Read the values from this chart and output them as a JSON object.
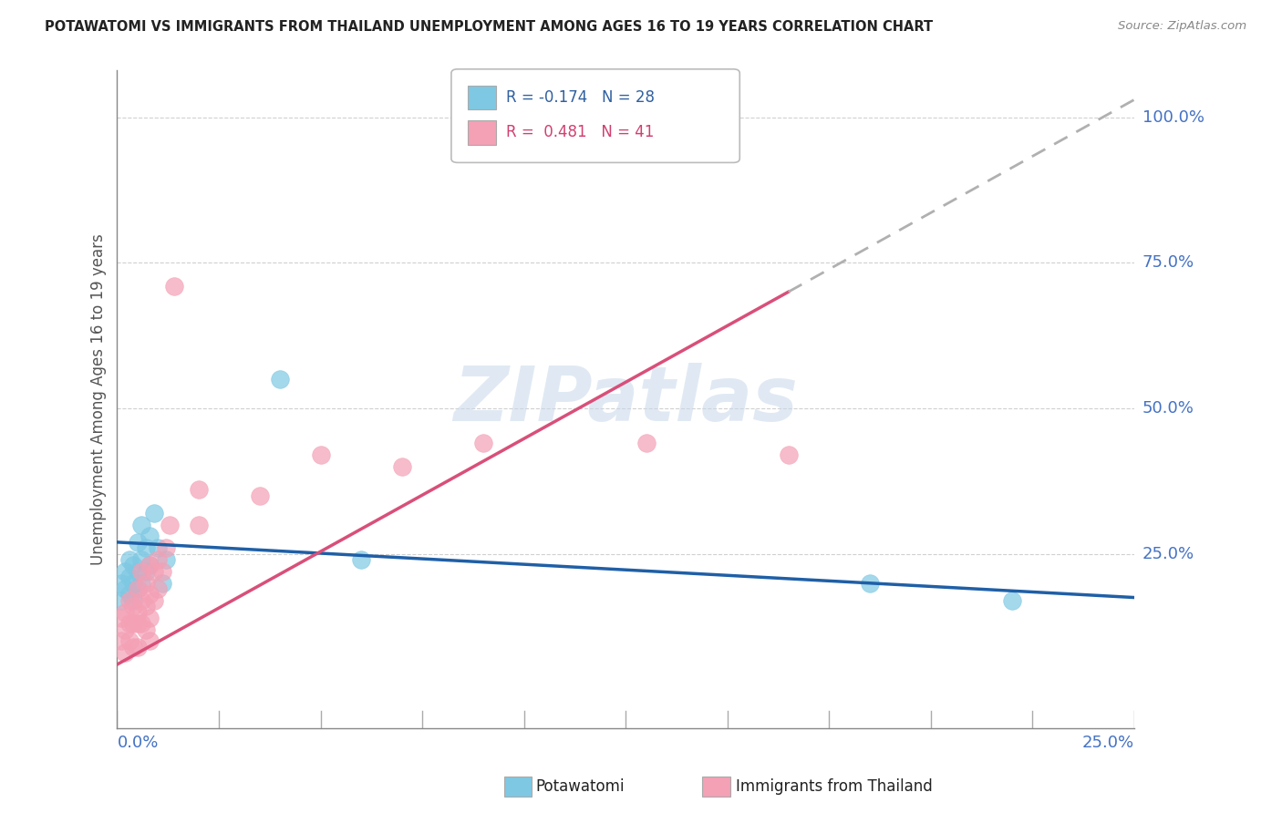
{
  "title": "POTAWATOMI VS IMMIGRANTS FROM THAILAND UNEMPLOYMENT AMONG AGES 16 TO 19 YEARS CORRELATION CHART",
  "source": "Source: ZipAtlas.com",
  "ylabel": "Unemployment Among Ages 16 to 19 years",
  "xlim": [
    0,
    0.25
  ],
  "ylim": [
    -0.05,
    1.08
  ],
  "legend1_r": "-0.174",
  "legend1_n": "28",
  "legend2_r": "0.481",
  "legend2_n": "41",
  "blue_scatter": "#7ec8e3",
  "pink_scatter": "#f4a0b5",
  "blue_line": "#1f5fa6",
  "pink_line": "#d94f7a",
  "gray_dash": "#b0b0b0",
  "watermark_color": "#c8d8ea",
  "potawatomi_x": [
    0.001,
    0.001,
    0.002,
    0.002,
    0.003,
    0.003,
    0.003,
    0.004,
    0.004,
    0.004,
    0.005,
    0.005,
    0.005,
    0.006,
    0.006,
    0.006,
    0.007,
    0.007,
    0.008,
    0.008,
    0.009,
    0.01,
    0.011,
    0.012,
    0.04,
    0.06,
    0.185,
    0.22
  ],
  "potawatomi_y": [
    0.2,
    0.17,
    0.22,
    0.19,
    0.24,
    0.21,
    0.18,
    0.23,
    0.2,
    0.17,
    0.27,
    0.22,
    0.19,
    0.3,
    0.24,
    0.2,
    0.26,
    0.22,
    0.28,
    0.23,
    0.32,
    0.26,
    0.2,
    0.24,
    0.55,
    0.24,
    0.2,
    0.17
  ],
  "thailand_x": [
    0.001,
    0.001,
    0.002,
    0.002,
    0.002,
    0.003,
    0.003,
    0.003,
    0.004,
    0.004,
    0.004,
    0.005,
    0.005,
    0.005,
    0.005,
    0.006,
    0.006,
    0.006,
    0.007,
    0.007,
    0.007,
    0.008,
    0.008,
    0.008,
    0.008,
    0.009,
    0.009,
    0.01,
    0.01,
    0.011,
    0.012,
    0.013,
    0.014,
    0.02,
    0.02,
    0.035,
    0.05,
    0.07,
    0.09,
    0.13,
    0.165
  ],
  "thailand_y": [
    0.14,
    0.1,
    0.15,
    0.12,
    0.08,
    0.17,
    0.13,
    0.1,
    0.16,
    0.13,
    0.09,
    0.19,
    0.15,
    0.13,
    0.09,
    0.22,
    0.17,
    0.13,
    0.2,
    0.16,
    0.12,
    0.23,
    0.18,
    0.14,
    0.1,
    0.22,
    0.17,
    0.24,
    0.19,
    0.22,
    0.26,
    0.3,
    0.71,
    0.3,
    0.36,
    0.35,
    0.42,
    0.4,
    0.44,
    0.44,
    0.42
  ],
  "blue_line_x0": 0.0,
  "blue_line_y0": 0.27,
  "blue_line_x1": 0.25,
  "blue_line_y1": 0.175,
  "pink_line_x0": 0.0,
  "pink_line_y0": 0.06,
  "pink_line_x1": 0.165,
  "pink_line_y1": 0.7,
  "dash_line_x0": 0.165,
  "dash_line_y0": 0.7,
  "dash_line_x1": 0.25,
  "dash_line_y1": 1.03
}
